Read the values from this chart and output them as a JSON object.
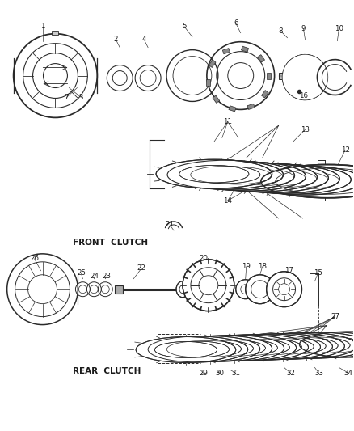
{
  "title": "",
  "bg_color": "#ffffff",
  "line_color": "#2a2a2a",
  "text_color": "#1a1a1a",
  "front_clutch_label": "FRONT  CLUTCH",
  "rear_clutch_label": "REAR  CLUTCH",
  "figsize": [
    4.38,
    5.33
  ],
  "dpi": 100
}
